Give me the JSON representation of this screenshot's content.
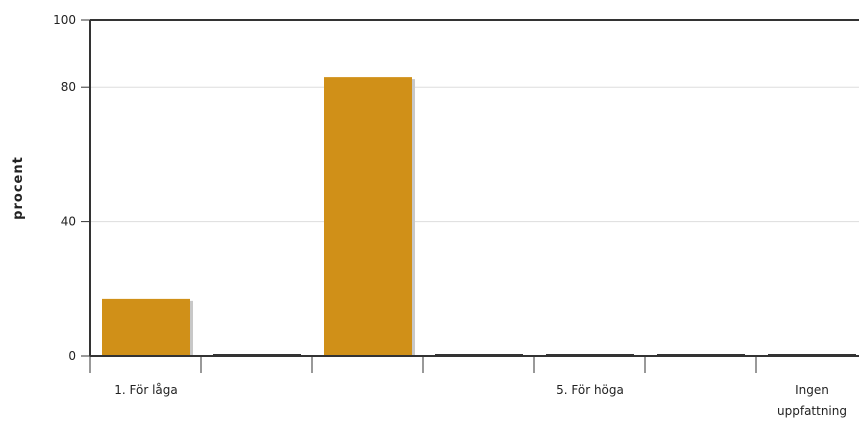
{
  "chart_data": {
    "type": "bar",
    "ylabel": "procent",
    "xlabel": "",
    "title": "",
    "ylim": [
      0,
      100
    ],
    "yticks": [
      0,
      40,
      80,
      100
    ],
    "grid": true,
    "categories": [
      "1. För låga",
      "",
      "",
      "",
      "5. För höga",
      "",
      "Ingen uppfattning"
    ],
    "values": [
      17,
      0,
      83,
      0,
      0,
      0,
      0
    ],
    "colors": {
      "bar": "#d09018",
      "shadow": "#c8c8c8",
      "axis": "#333333",
      "grid": "#dddddd"
    }
  }
}
